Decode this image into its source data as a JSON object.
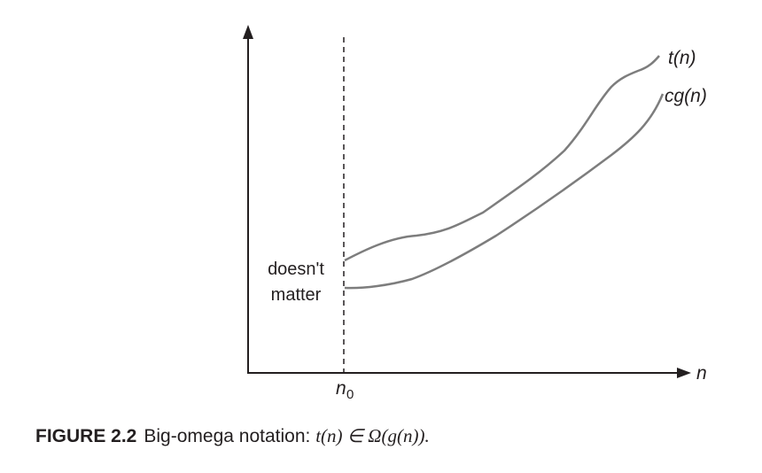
{
  "figure": {
    "curve_upper_label": "t(n)",
    "curve_lower_label": "cg(n)",
    "x_axis_label": "n",
    "threshold_label_main": "n",
    "threshold_label_sub": "0",
    "region_note_line1": "doesn't",
    "region_note_line2": "matter"
  },
  "caption": {
    "figure_number": "FIGURE 2.2",
    "text": "Big-omega notation:",
    "math": "t(n) ∈ Ω(g(n))."
  },
  "colors": {
    "curve": "#7d7d7d",
    "axis": "#231f20",
    "text": "#231f20"
  }
}
